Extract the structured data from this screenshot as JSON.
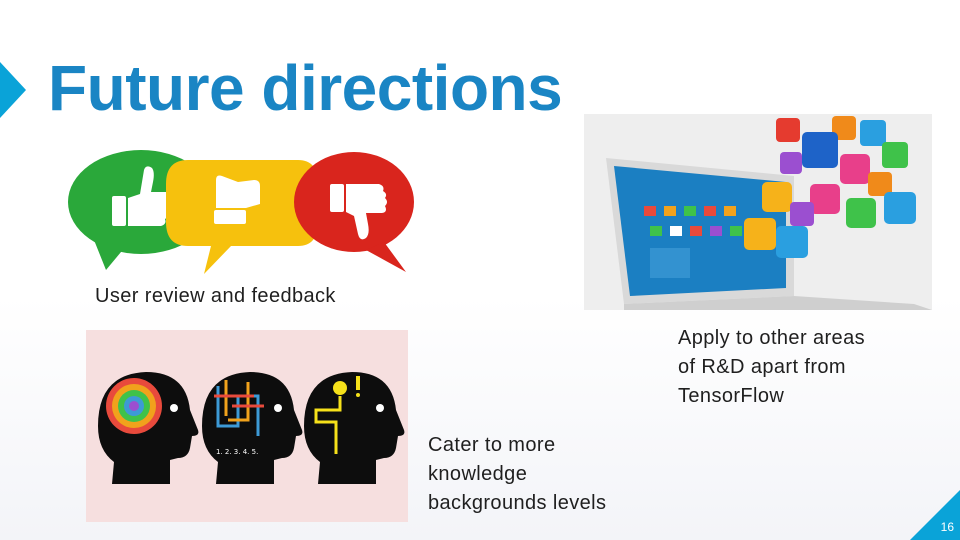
{
  "slide": {
    "title": "Future directions",
    "slide_number": "16",
    "accent_color": "#0aa3d8",
    "title_color": "#1a85c4"
  },
  "items": [
    {
      "caption": "User review and feedback",
      "picture": "feedback-speech-bubbles-thumbs"
    },
    {
      "caption_lines": [
        "Apply to other areas",
        "of R&D apart from",
        "TensorFlow"
      ],
      "picture": "laptop-with-app-icons"
    },
    {
      "caption_lines": [
        "Cater to more",
        "knowledge",
        "backgrounds levels"
      ],
      "picture": "three-heads-knowledge-levels"
    }
  ],
  "feedback_colors": [
    "#2aa83a",
    "#f6c10d",
    "#d9251d"
  ]
}
